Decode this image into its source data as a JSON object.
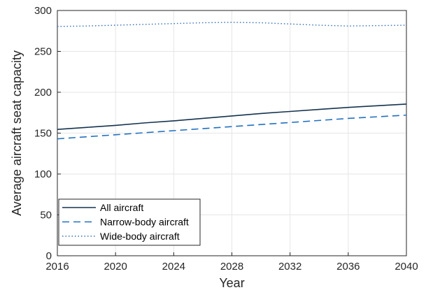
{
  "chart_data": {
    "type": "line",
    "xlabel": "Year",
    "ylabel": "Average aircraft seat capacity",
    "xlim": [
      2016,
      2040
    ],
    "ylim": [
      0,
      300
    ],
    "x_ticks": [
      2016,
      2020,
      2024,
      2028,
      2032,
      2036,
      2040
    ],
    "y_ticks": [
      0,
      50,
      100,
      150,
      200,
      250,
      300
    ],
    "grid": true,
    "legend_position": "bottom-left",
    "x": [
      2016,
      2018,
      2020,
      2022,
      2024,
      2026,
      2028,
      2030,
      2032,
      2034,
      2036,
      2038,
      2040
    ],
    "series": [
      {
        "name": "All aircraft",
        "style": "solid",
        "color": "#14334f",
        "values": [
          154.5,
          157,
          159.5,
          162.5,
          165,
          168,
          171,
          174,
          176.5,
          179,
          181.5,
          183.5,
          185.5
        ]
      },
      {
        "name": "Narrow-body aircraft",
        "style": "dashed",
        "color": "#2170c0",
        "values": [
          143,
          145.5,
          148,
          150.5,
          153,
          155.5,
          158,
          160.5,
          163,
          165.5,
          168,
          170,
          172
        ]
      },
      {
        "name": "Wide-body aircraft",
        "style": "dotted",
        "color": "#2f6fb8",
        "values": [
          280.5,
          281,
          282,
          283,
          284,
          285,
          285.5,
          285,
          283.5,
          282,
          281,
          281.5,
          282
        ]
      }
    ]
  }
}
